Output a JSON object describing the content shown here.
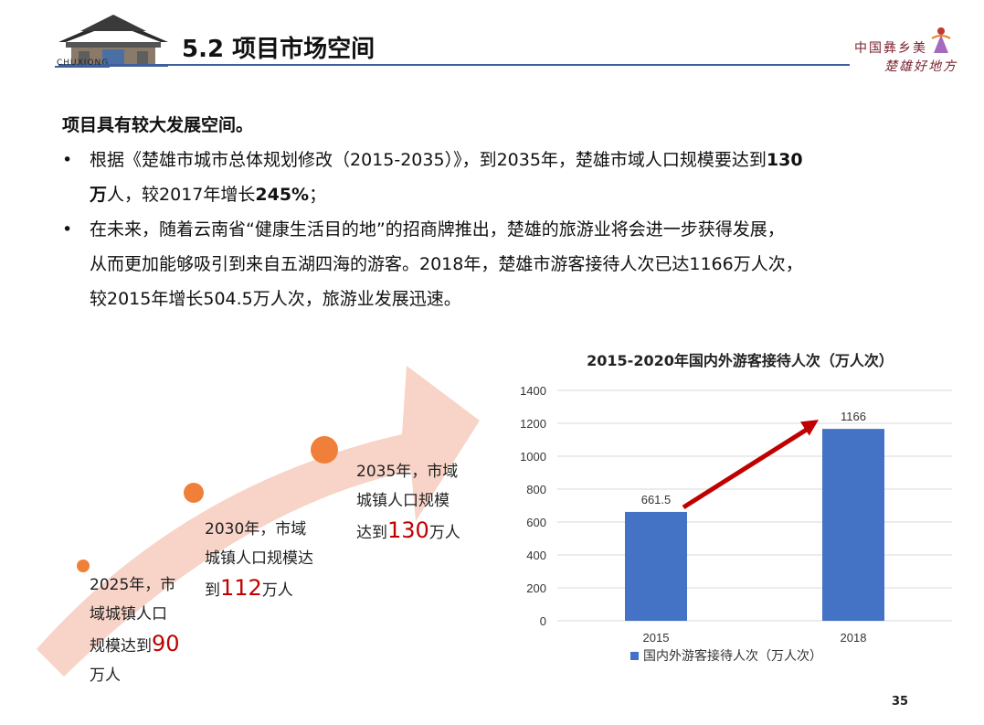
{
  "header": {
    "title": "5.2 项目市场空间",
    "logo_left_text": "CHUXIONG",
    "logo_right_line1": "中国彝乡美",
    "logo_right_line2": "楚雄好地方"
  },
  "content": {
    "heading": "项目具有较大发展空间。",
    "bullet_symbol": "•",
    "b1_p1": "根据《楚雄市城市总体规划修改（2015-2035）》，到2035年，楚雄市域人口规模要达到",
    "b1_hl1": "130",
    "b1_hl2": "万",
    "b1_p2": "人，较2017年增长",
    "b1_hl3": "245%",
    "b1_p3": "；",
    "b2_l1": "在未来，随着云南省“健康生活目的地”的招商牌推出，楚雄的旅游业将会进一步获得发展，",
    "b2_l2": "从而更加能够吸引到来自五湖四海的游客。2018年，楚雄市游客接待人次已达1166万人次，",
    "b2_l3": "较2015年增长504.5万人次，旅游业发展迅速。"
  },
  "steps": [
    {
      "l1": "2025年，市",
      "l2": "域城镇人口",
      "l3": "规模达到",
      "num": "90",
      "l4": "万人"
    },
    {
      "l1": "2030年，市域",
      "l2": "城镇人口规模达",
      "l3": "到",
      "num": "112",
      "l4": "万人"
    },
    {
      "l1": "2035年，市域",
      "l2": "城镇人口规模",
      "l3": "达到",
      "num": "130",
      "l4": "万人"
    }
  ],
  "chart_data": {
    "type": "bar",
    "title": "2015-2020年国内外游客接待人次（万人次）",
    "categories": [
      "2015",
      "2018"
    ],
    "series": [
      {
        "name": "国内外游客接待人次（万人次）",
        "values": [
          661.5,
          1166
        ]
      }
    ],
    "value_labels": [
      "661.5",
      "1166"
    ],
    "ylim": [
      0,
      1400
    ],
    "yticks": [
      0,
      200,
      400,
      600,
      800,
      1000,
      1200,
      1400
    ],
    "grid": true,
    "legend": "bottom",
    "bar_color": "#4472c4",
    "trend_arrow_color": "#c00000"
  },
  "colors": {
    "accent_blue": "#3d5f9c",
    "highlight_red": "#c00000",
    "arrow_fill": "#f8d3c7",
    "dot_orange": "#f07f3a"
  },
  "footer": {
    "page_number": "35"
  }
}
